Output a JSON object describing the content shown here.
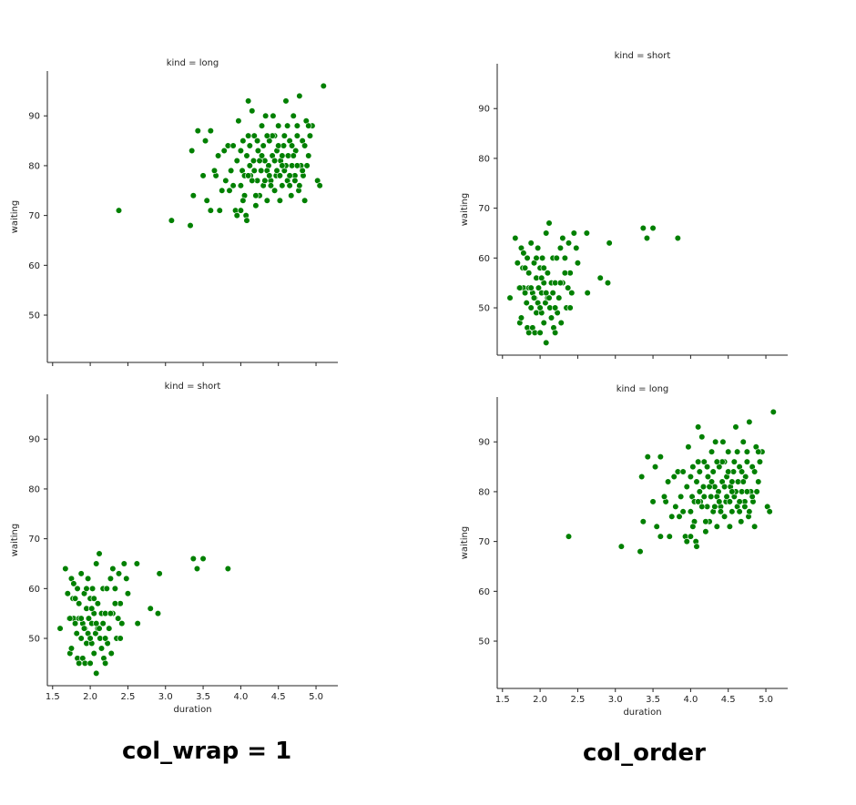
{
  "captions": {
    "left": "col_wrap = 1",
    "right": "col_order"
  },
  "colors": {
    "point": "#008000",
    "point_edge": "#ffffff",
    "axis": "#222222"
  },
  "chart_data": [
    {
      "type": "scatter",
      "title": "kind = long",
      "xlabel": "",
      "ylabel": "waiting",
      "xlim": [
        1.43,
        5.29
      ],
      "ylim": [
        40.5,
        99
      ],
      "xticks": [
        1.5,
        2.0,
        2.5,
        3.0,
        3.5,
        4.0,
        4.5,
        5.0
      ],
      "xtick_labels": [],
      "yticks": [
        50,
        60,
        70,
        80,
        90
      ],
      "ytick_labels": [
        "50",
        "60",
        "70",
        "80",
        "90"
      ],
      "grid": false,
      "points": "long"
    },
    {
      "type": "scatter",
      "title": "kind = short",
      "xlabel": "duration",
      "ylabel": "waiting",
      "xlim": [
        1.43,
        5.29
      ],
      "ylim": [
        40.5,
        99
      ],
      "xticks": [
        1.5,
        2.0,
        2.5,
        3.0,
        3.5,
        4.0,
        4.5,
        5.0
      ],
      "xtick_labels": [
        "1.5",
        "2.0",
        "2.5",
        "3.0",
        "3.5",
        "4.0",
        "4.5",
        "5.0"
      ],
      "yticks": [
        50,
        60,
        70,
        80,
        90
      ],
      "ytick_labels": [
        "50",
        "60",
        "70",
        "80",
        "90"
      ],
      "grid": false,
      "points": "short"
    },
    {
      "type": "scatter",
      "title": "kind = short",
      "xlabel": "",
      "ylabel": "waiting",
      "xlim": [
        1.43,
        5.29
      ],
      "ylim": [
        40.5,
        99
      ],
      "xticks": [
        1.5,
        2.0,
        2.5,
        3.0,
        3.5,
        4.0,
        4.5,
        5.0
      ],
      "xtick_labels": [],
      "yticks": [
        50,
        60,
        70,
        80,
        90
      ],
      "ytick_labels": [
        "50",
        "60",
        "70",
        "80",
        "90"
      ],
      "grid": false,
      "points": "short"
    },
    {
      "type": "scatter",
      "title": "kind = long",
      "xlabel": "duration",
      "ylabel": "waiting",
      "xlim": [
        1.43,
        5.29
      ],
      "ylim": [
        40.5,
        99
      ],
      "xticks": [
        1.5,
        2.0,
        2.5,
        3.0,
        3.5,
        4.0,
        4.5,
        5.0
      ],
      "xtick_labels": [
        "1.5",
        "2.0",
        "2.5",
        "3.0",
        "3.5",
        "4.0",
        "4.5",
        "5.0"
      ],
      "yticks": [
        50,
        60,
        70,
        80,
        90
      ],
      "ytick_labels": [
        "50",
        "60",
        "70",
        "80",
        "90"
      ],
      "grid": false,
      "points": "long"
    }
  ],
  "series_points": {
    "long": [
      [
        2.38,
        71
      ],
      [
        3.08,
        69
      ],
      [
        3.33,
        68
      ],
      [
        3.35,
        83
      ],
      [
        3.37,
        74
      ],
      [
        3.43,
        87
      ],
      [
        3.5,
        78
      ],
      [
        3.53,
        85
      ],
      [
        3.6,
        87
      ],
      [
        3.67,
        78
      ],
      [
        3.6,
        71
      ],
      [
        3.72,
        71
      ],
      [
        3.75,
        75
      ],
      [
        3.83,
        84
      ],
      [
        3.85,
        75
      ],
      [
        3.87,
        79
      ],
      [
        3.9,
        76
      ],
      [
        3.93,
        71
      ],
      [
        3.95,
        70
      ],
      [
        3.97,
        89
      ],
      [
        4.0,
        71
      ],
      [
        4.02,
        79
      ],
      [
        4.03,
        85
      ],
      [
        4.05,
        78
      ],
      [
        4.07,
        70
      ],
      [
        4.08,
        69
      ],
      [
        4.1,
        93
      ],
      [
        4.12,
        84
      ],
      [
        4.13,
        78
      ],
      [
        4.15,
        91
      ],
      [
        4.17,
        81
      ],
      [
        4.18,
        86
      ],
      [
        4.2,
        72
      ],
      [
        4.22,
        77
      ],
      [
        4.23,
        83
      ],
      [
        4.25,
        74
      ],
      [
        4.27,
        79
      ],
      [
        4.28,
        88
      ],
      [
        4.3,
        76
      ],
      [
        4.32,
        81
      ],
      [
        4.33,
        90
      ],
      [
        4.35,
        73
      ],
      [
        4.37,
        80
      ],
      [
        4.38,
        85
      ],
      [
        4.4,
        77
      ],
      [
        4.42,
        82
      ],
      [
        4.43,
        90
      ],
      [
        4.45,
        75
      ],
      [
        4.47,
        78
      ],
      [
        4.48,
        83
      ],
      [
        4.5,
        88
      ],
      [
        4.52,
        73
      ],
      [
        4.53,
        81
      ],
      [
        4.55,
        76
      ],
      [
        4.57,
        84
      ],
      [
        4.58,
        79
      ],
      [
        4.6,
        93
      ],
      [
        4.62,
        77
      ],
      [
        4.63,
        82
      ],
      [
        4.65,
        85
      ],
      [
        4.67,
        74
      ],
      [
        4.68,
        80
      ],
      [
        4.7,
        90
      ],
      [
        4.72,
        78
      ],
      [
        4.73,
        83
      ],
      [
        4.75,
        88
      ],
      [
        4.77,
        75
      ],
      [
        4.78,
        94
      ],
      [
        4.8,
        80
      ],
      [
        4.82,
        85
      ],
      [
        4.83,
        78
      ],
      [
        4.85,
        73
      ],
      [
        4.87,
        89
      ],
      [
        4.9,
        82
      ],
      [
        4.92,
        86
      ],
      [
        4.95,
        88
      ],
      [
        5.02,
        77
      ],
      [
        5.05,
        76
      ],
      [
        5.1,
        96
      ],
      [
        4.0,
        76
      ],
      [
        4.1,
        78
      ],
      [
        4.2,
        74
      ],
      [
        4.3,
        84
      ],
      [
        4.4,
        76
      ],
      [
        4.5,
        84
      ],
      [
        4.6,
        80
      ],
      [
        4.7,
        82
      ],
      [
        4.8,
        80
      ],
      [
        4.9,
        88
      ],
      [
        4.25,
        81
      ],
      [
        4.35,
        79
      ],
      [
        4.45,
        86
      ],
      [
        4.55,
        82
      ],
      [
        4.65,
        78
      ],
      [
        4.75,
        80
      ],
      [
        4.15,
        77
      ],
      [
        3.95,
        81
      ],
      [
        3.8,
        77
      ],
      [
        3.7,
        82
      ],
      [
        3.65,
        79
      ],
      [
        3.55,
        73
      ],
      [
        4.05,
        74
      ],
      [
        4.12,
        80
      ],
      [
        4.28,
        82
      ],
      [
        4.38,
        78
      ],
      [
        4.48,
        79
      ],
      [
        4.58,
        86
      ],
      [
        4.68,
        84
      ],
      [
        4.78,
        76
      ],
      [
        4.88,
        80
      ],
      [
        4.08,
        82
      ],
      [
        4.18,
        79
      ],
      [
        4.32,
        77
      ],
      [
        4.42,
        86
      ],
      [
        4.52,
        78
      ],
      [
        4.62,
        88
      ],
      [
        4.72,
        77
      ],
      [
        4.82,
        79
      ],
      [
        4.03,
        73
      ],
      [
        3.9,
        84
      ],
      [
        3.78,
        83
      ],
      [
        4.22,
        85
      ],
      [
        4.45,
        81
      ],
      [
        4.65,
        76
      ],
      [
        4.85,
        84
      ],
      [
        4.0,
        83
      ],
      [
        4.35,
        86
      ],
      [
        4.55,
        80
      ],
      [
        4.75,
        86
      ],
      [
        4.1,
        86
      ]
    ],
    "short": [
      [
        1.6,
        52
      ],
      [
        1.67,
        64
      ],
      [
        1.7,
        59
      ],
      [
        1.72,
        54
      ],
      [
        1.73,
        47
      ],
      [
        1.75,
        48
      ],
      [
        1.75,
        62
      ],
      [
        1.77,
        58
      ],
      [
        1.78,
        54
      ],
      [
        1.8,
        53
      ],
      [
        1.8,
        58
      ],
      [
        1.82,
        51
      ],
      [
        1.83,
        46
      ],
      [
        1.83,
        60
      ],
      [
        1.85,
        57
      ],
      [
        1.85,
        45
      ],
      [
        1.87,
        54
      ],
      [
        1.88,
        50
      ],
      [
        1.88,
        63
      ],
      [
        1.9,
        53
      ],
      [
        1.9,
        46
      ],
      [
        1.92,
        59
      ],
      [
        1.93,
        52
      ],
      [
        1.93,
        45
      ],
      [
        1.95,
        56
      ],
      [
        1.95,
        49
      ],
      [
        1.97,
        62
      ],
      [
        1.97,
        51
      ],
      [
        1.98,
        54
      ],
      [
        2.0,
        58
      ],
      [
        2.0,
        45
      ],
      [
        2.02,
        53
      ],
      [
        2.02,
        49
      ],
      [
        2.03,
        60
      ],
      [
        2.05,
        47
      ],
      [
        2.05,
        55
      ],
      [
        2.07,
        51
      ],
      [
        2.08,
        65
      ],
      [
        2.08,
        43
      ],
      [
        2.1,
        57
      ],
      [
        2.1,
        52
      ],
      [
        2.12,
        67
      ],
      [
        2.13,
        50
      ],
      [
        2.15,
        55
      ],
      [
        2.15,
        48
      ],
      [
        2.17,
        60
      ],
      [
        2.17,
        53
      ],
      [
        2.18,
        46
      ],
      [
        2.2,
        55
      ],
      [
        2.2,
        45
      ],
      [
        2.22,
        60
      ],
      [
        2.23,
        49
      ],
      [
        2.25,
        52
      ],
      [
        2.27,
        62
      ],
      [
        2.28,
        47
      ],
      [
        2.3,
        55
      ],
      [
        2.3,
        64
      ],
      [
        2.33,
        60
      ],
      [
        2.35,
        50
      ],
      [
        2.37,
        54
      ],
      [
        2.38,
        63
      ],
      [
        2.4,
        57
      ],
      [
        2.42,
        53
      ],
      [
        2.45,
        65
      ],
      [
        2.48,
        62
      ],
      [
        2.5,
        59
      ],
      [
        2.62,
        65
      ],
      [
        2.63,
        53
      ],
      [
        2.8,
        56
      ],
      [
        2.9,
        55
      ],
      [
        2.92,
        63
      ],
      [
        3.37,
        66
      ],
      [
        3.42,
        64
      ],
      [
        3.5,
        66
      ],
      [
        3.83,
        64
      ],
      [
        1.73,
        54
      ],
      [
        1.78,
        61
      ],
      [
        1.85,
        54
      ],
      [
        1.92,
        52
      ],
      [
        2.0,
        50
      ],
      [
        2.05,
        58
      ],
      [
        2.12,
        52
      ],
      [
        2.2,
        50
      ],
      [
        2.27,
        55
      ],
      [
        2.33,
        57
      ],
      [
        2.4,
        50
      ],
      [
        1.88,
        54
      ],
      [
        1.95,
        60
      ],
      [
        2.02,
        56
      ],
      [
        2.08,
        53
      ]
    ]
  }
}
